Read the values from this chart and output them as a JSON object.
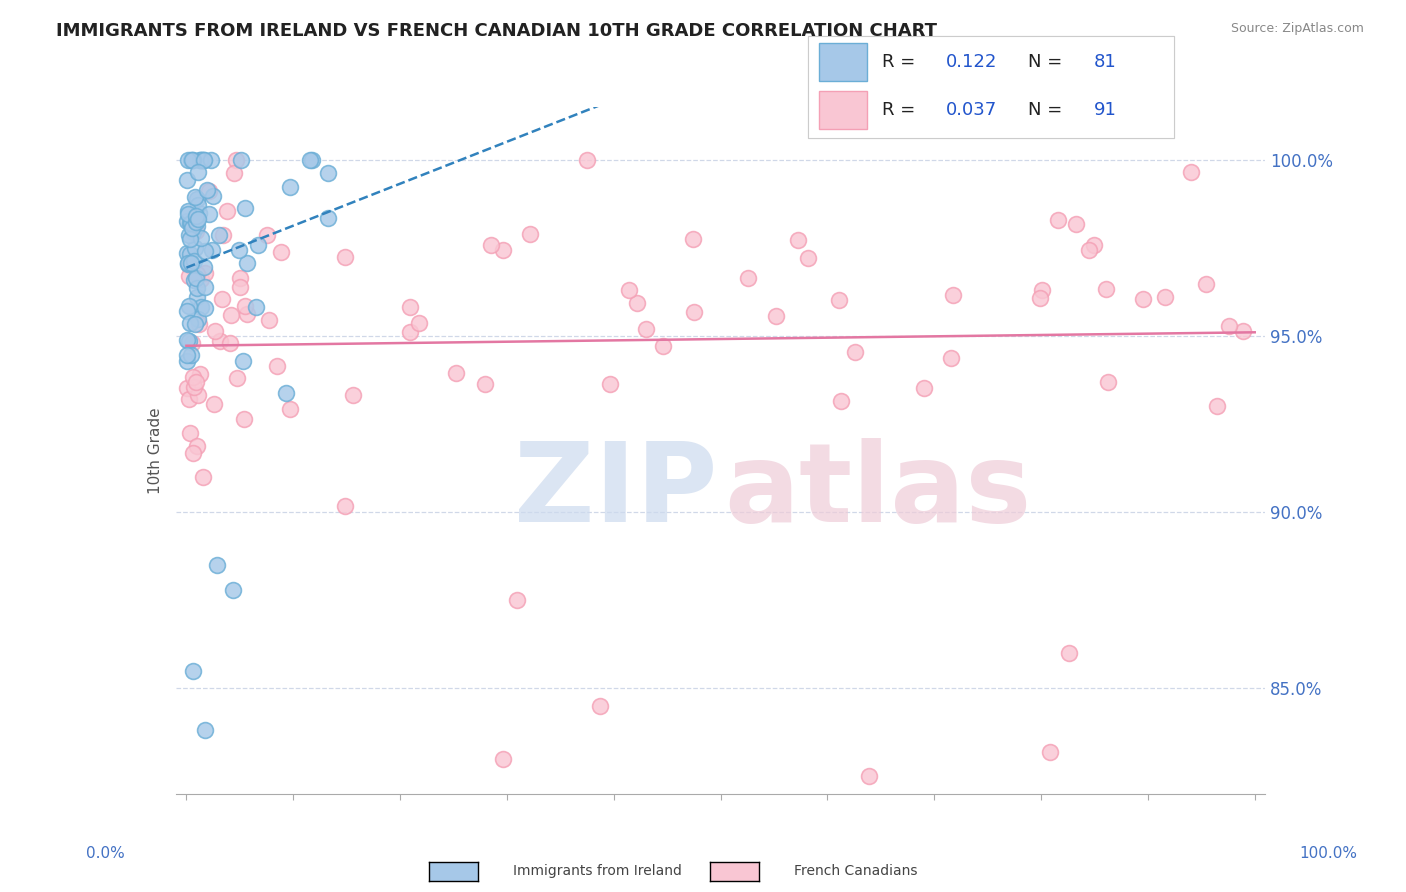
{
  "title": "IMMIGRANTS FROM IRELAND VS FRENCH CANADIAN 10TH GRADE CORRELATION CHART",
  "source": "Source: ZipAtlas.com",
  "ylabel": "10th Grade",
  "series1_face": "#a6c8e8",
  "series1_edge": "#6baed6",
  "series2_face": "#f9c6d3",
  "series2_edge": "#f4a0b5",
  "trendline1_color": "#3182bd",
  "trendline2_color": "#e377a2",
  "R1": 0.122,
  "N1": 81,
  "R2": 0.037,
  "N2": 91,
  "ymin": 82.0,
  "ymax": 101.5,
  "xmin": -1.0,
  "xmax": 101.0,
  "ytick_vals": [
    85.0,
    90.0,
    95.0,
    100.0
  ],
  "grid_color": "#d0d8e8",
  "axis_color": "#aaaaaa",
  "tick_label_color": "#4472c4",
  "ylabel_color": "#555555",
  "title_color": "#222222",
  "source_color": "#888888",
  "legend_r1_val": "0.122",
  "legend_n1_val": "81",
  "legend_r2_val": "0.037",
  "legend_n2_val": "91",
  "legend_val_color": "#2255cc",
  "legend_text_color": "#222222",
  "watermark_zip_color": "#ccdaee",
  "watermark_atlas_color": "#eeccd8"
}
